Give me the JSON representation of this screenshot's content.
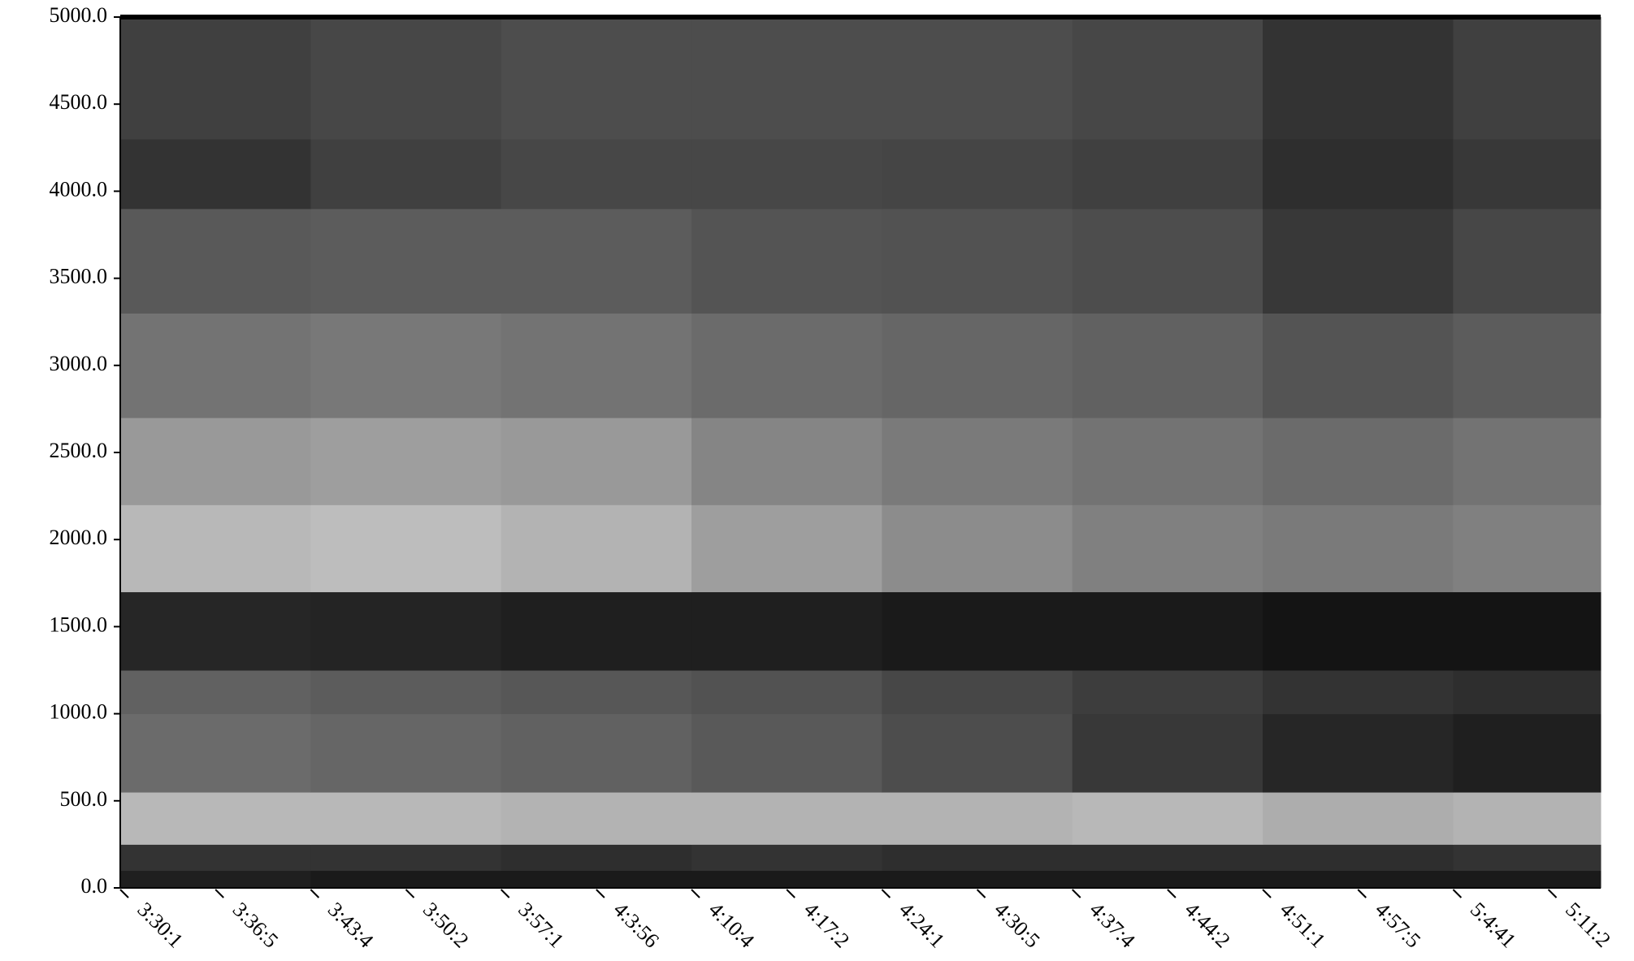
{
  "chart_data": {
    "type": "heatmap",
    "xbins": [
      0,
      2,
      4,
      6,
      8,
      10,
      12,
      14,
      15.55
    ],
    "ybins": [
      0,
      100,
      250,
      550,
      1000,
      1250,
      1700,
      2200,
      2700,
      3300,
      3900,
      4300,
      5000
    ],
    "z": [
      [
        0.12,
        0.1,
        0.1,
        0.1,
        0.1,
        0.1,
        0.1,
        0.1
      ],
      [
        0.2,
        0.2,
        0.18,
        0.2,
        0.18,
        0.18,
        0.18,
        0.2
      ],
      [
        0.72,
        0.72,
        0.7,
        0.7,
        0.7,
        0.72,
        0.68,
        0.7
      ],
      [
        0.42,
        0.4,
        0.38,
        0.35,
        0.3,
        0.22,
        0.15,
        0.12
      ],
      [
        0.38,
        0.36,
        0.34,
        0.32,
        0.28,
        0.24,
        0.2,
        0.18
      ],
      [
        0.15,
        0.14,
        0.12,
        0.12,
        0.1,
        0.1,
        0.08,
        0.08
      ],
      [
        0.72,
        0.74,
        0.7,
        0.62,
        0.55,
        0.5,
        0.48,
        0.5
      ],
      [
        0.6,
        0.62,
        0.6,
        0.52,
        0.48,
        0.45,
        0.42,
        0.45
      ],
      [
        0.45,
        0.47,
        0.45,
        0.42,
        0.4,
        0.38,
        0.33,
        0.36
      ],
      [
        0.35,
        0.36,
        0.36,
        0.33,
        0.32,
        0.3,
        0.22,
        0.28
      ],
      [
        0.2,
        0.25,
        0.28,
        0.28,
        0.27,
        0.25,
        0.18,
        0.22
      ],
      [
        0.25,
        0.28,
        0.3,
        0.3,
        0.3,
        0.28,
        0.2,
        0.25
      ]
    ],
    "colormap": "gray",
    "xlim": [
      0,
      15.55
    ],
    "ylim": [
      0,
      5000
    ],
    "xticks": [
      {
        "value": 0,
        "label": "3:30:1"
      },
      {
        "value": 1,
        "label": "3:36:5"
      },
      {
        "value": 2,
        "label": "3:43:4"
      },
      {
        "value": 3,
        "label": "3:50:2"
      },
      {
        "value": 4,
        "label": "3:57:1"
      },
      {
        "value": 5,
        "label": "4:3:56"
      },
      {
        "value": 6,
        "label": "4:10:4"
      },
      {
        "value": 7,
        "label": "4:17:2"
      },
      {
        "value": 8,
        "label": "4:24:1"
      },
      {
        "value": 9,
        "label": "4:30:5"
      },
      {
        "value": 10,
        "label": "4:37:4"
      },
      {
        "value": 11,
        "label": "4:44:2"
      },
      {
        "value": 12,
        "label": "4:51:1"
      },
      {
        "value": 13,
        "label": "4:57:5"
      },
      {
        "value": 14,
        "label": "5:4:41"
      },
      {
        "value": 15,
        "label": "5:11:2"
      }
    ],
    "yticks": [
      {
        "value": 0,
        "label": "0.0"
      },
      {
        "value": 500,
        "label": "500.0"
      },
      {
        "value": 1000,
        "label": "1000.0"
      },
      {
        "value": 1500,
        "label": "1500.0"
      },
      {
        "value": 2000,
        "label": "2000.0"
      },
      {
        "value": 2500,
        "label": "2500.0"
      },
      {
        "value": 3000,
        "label": "3000.0"
      },
      {
        "value": 3500,
        "label": "3500.0"
      },
      {
        "value": 4000,
        "label": "4000.0"
      },
      {
        "value": 4500,
        "label": "4500.0"
      },
      {
        "value": 5000,
        "label": "5000.0"
      }
    ]
  }
}
